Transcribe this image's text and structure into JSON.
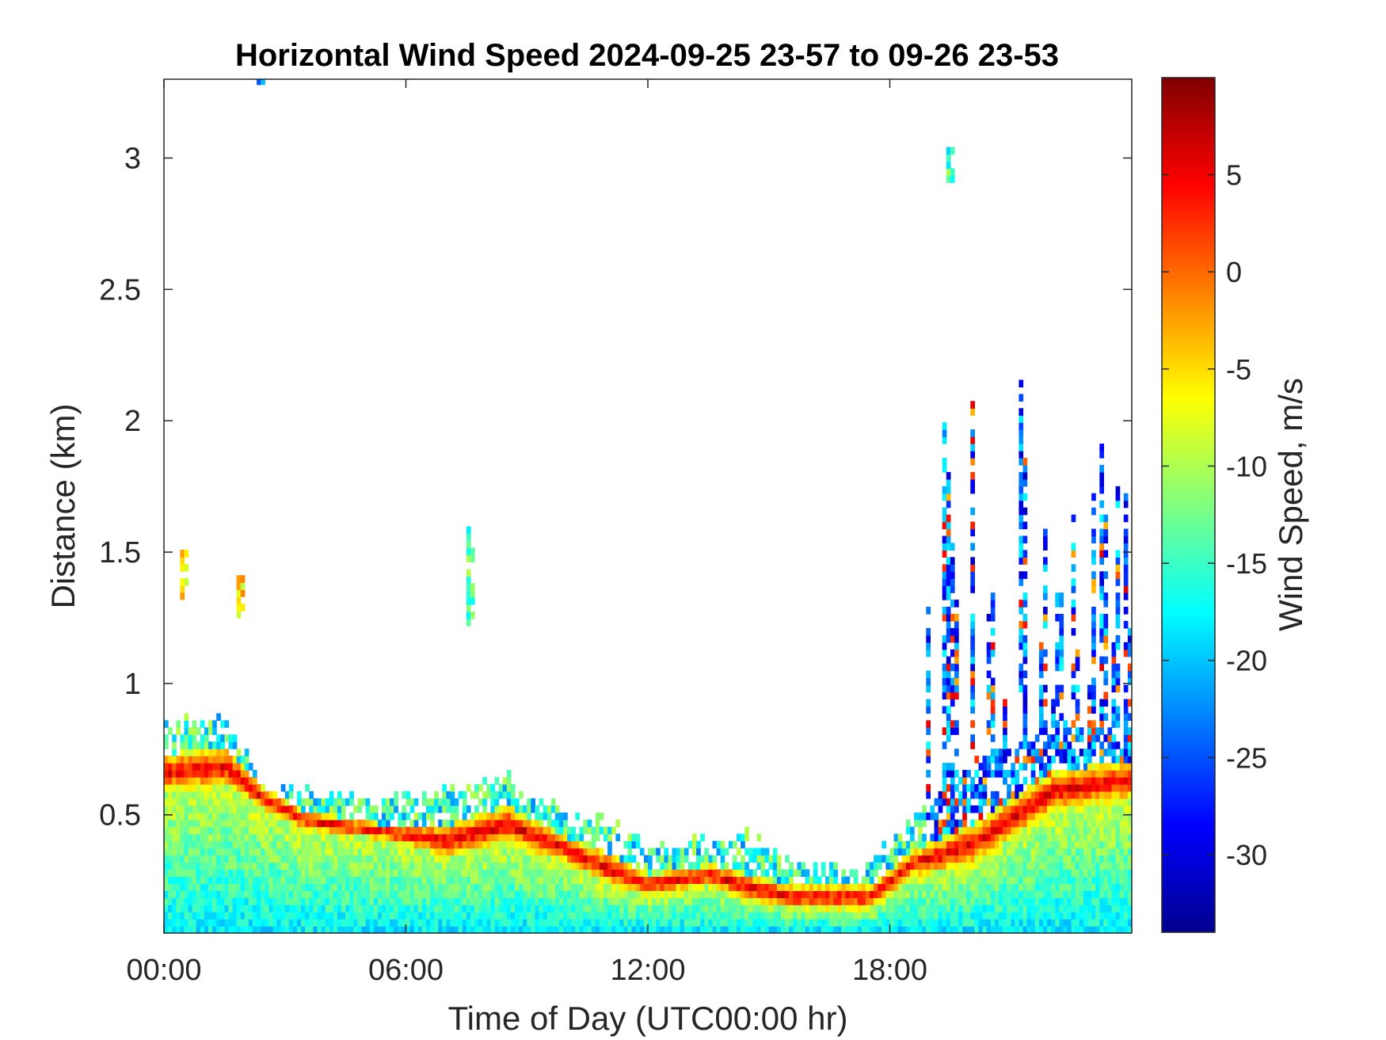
{
  "chart_data": {
    "type": "heatmap",
    "title": "Horizontal Wind Speed 2024-09-25 23-57 to 09-26 23-53",
    "xlabel": "Time of Day (UTC00:00 hr)",
    "ylabel": "Distance (km)",
    "colorbar_label": "Wind Speed, m/s",
    "colormap": "jet",
    "x_range_hours": [
      0,
      24
    ],
    "y_range_km": [
      0.05,
      3.3
    ],
    "color_range": [
      -34,
      10
    ],
    "x_ticks": [
      {
        "value": 0,
        "label": "00:00"
      },
      {
        "value": 6,
        "label": "06:00"
      },
      {
        "value": 12,
        "label": "12:00"
      },
      {
        "value": 18,
        "label": "18:00"
      }
    ],
    "y_ticks": [
      {
        "value": 0.5,
        "label": "0.5"
      },
      {
        "value": 1,
        "label": "1"
      },
      {
        "value": 1.5,
        "label": "1.5"
      },
      {
        "value": 2,
        "label": "2"
      },
      {
        "value": 2.5,
        "label": "2.5"
      },
      {
        "value": 3,
        "label": "3"
      }
    ],
    "colorbar_ticks": [
      {
        "value": 5,
        "label": "5"
      },
      {
        "value": 0,
        "label": "0"
      },
      {
        "value": -5,
        "label": "-5"
      },
      {
        "value": -10,
        "label": "-10"
      },
      {
        "value": -15,
        "label": "-15"
      },
      {
        "value": -20,
        "label": "-20"
      },
      {
        "value": -25,
        "label": "-25"
      },
      {
        "value": -30,
        "label": "-30"
      }
    ],
    "grid": false,
    "data_extent": {
      "time_hours": [
        0,
        24
      ],
      "height_km_min": 0.05
    },
    "surface_speed_ms": -18,
    "jet_core_speed_ms": 6,
    "jet_layer_height_km": [
      {
        "time": 0.0,
        "bottom": 0.58,
        "top": 0.72,
        "coverage_top": 0.8
      },
      {
        "time": 1.5,
        "bottom": 0.6,
        "top": 0.74,
        "coverage_top": 0.82
      },
      {
        "time": 2.5,
        "bottom": 0.5,
        "top": 0.58,
        "coverage_top": 0.56
      },
      {
        "time": 3.5,
        "bottom": 0.43,
        "top": 0.5,
        "coverage_top": 0.55
      },
      {
        "time": 5.5,
        "bottom": 0.39,
        "top": 0.45,
        "coverage_top": 0.52
      },
      {
        "time": 7.0,
        "bottom": 0.33,
        "top": 0.45,
        "coverage_top": 0.55
      },
      {
        "time": 8.5,
        "bottom": 0.38,
        "top": 0.52,
        "coverage_top": 0.6
      },
      {
        "time": 10.0,
        "bottom": 0.3,
        "top": 0.4,
        "coverage_top": 0.45
      },
      {
        "time": 11.0,
        "bottom": 0.22,
        "top": 0.34,
        "coverage_top": 0.45
      },
      {
        "time": 12.0,
        "bottom": 0.18,
        "top": 0.26,
        "coverage_top": 0.33
      },
      {
        "time": 13.5,
        "bottom": 0.22,
        "top": 0.3,
        "coverage_top": 0.37
      },
      {
        "time": 14.5,
        "bottom": 0.16,
        "top": 0.26,
        "coverage_top": 0.38
      },
      {
        "time": 15.5,
        "bottom": 0.13,
        "top": 0.22,
        "coverage_top": 0.27
      },
      {
        "time": 17.5,
        "bottom": 0.13,
        "top": 0.22,
        "coverage_top": 0.27
      },
      {
        "time": 18.5,
        "bottom": 0.25,
        "top": 0.35,
        "coverage_top": 0.45
      },
      {
        "time": 20.0,
        "bottom": 0.3,
        "top": 0.45,
        "coverage_top": 0.7
      },
      {
        "time": 22.0,
        "bottom": 0.5,
        "top": 0.65,
        "coverage_top": 0.8
      },
      {
        "time": 24.0,
        "bottom": 0.55,
        "top": 0.7,
        "coverage_top": 0.82
      }
    ],
    "convective_region": {
      "time_hours": [
        18.8,
        24
      ],
      "height_km_max": 2.2,
      "speed_ms": -24
    },
    "isolated_features": [
      {
        "time": 0.4,
        "height_km": [
          1.32,
          1.5
        ],
        "speed_ms": -5
      },
      {
        "time": 1.8,
        "height_km": [
          1.25,
          1.4
        ],
        "speed_ms": -5
      },
      {
        "time": 7.5,
        "height_km": [
          1.22,
          1.58
        ],
        "speed_ms": -14
      },
      {
        "time": 2.3,
        "height_km": [
          3.28,
          3.3
        ],
        "speed_ms": -20
      },
      {
        "time": 19.4,
        "height_km": [
          2.88,
          3.03
        ],
        "speed_ms": -15
      }
    ]
  }
}
